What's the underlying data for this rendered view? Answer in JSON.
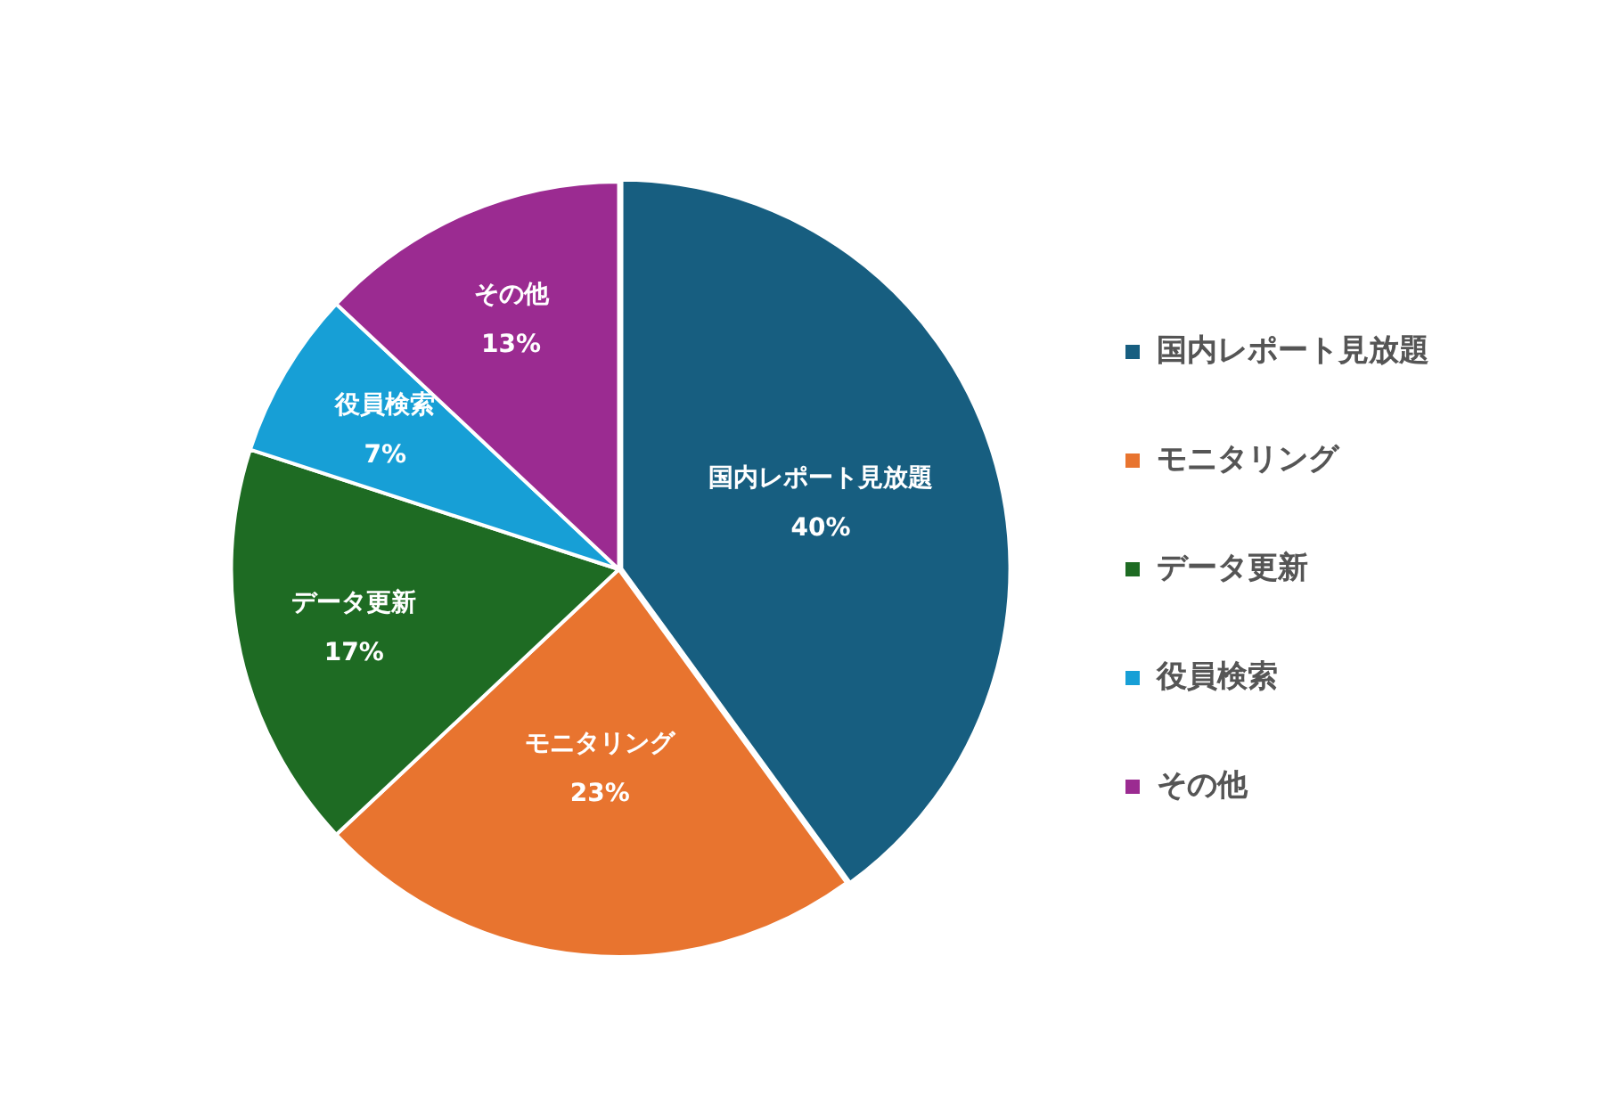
{
  "chart_data": {
    "type": "pie",
    "categories": [
      "国内レポート見放題",
      "モニタリング",
      "データ更新",
      "役員検索",
      "その他"
    ],
    "values": [
      40,
      23,
      17,
      7,
      13
    ],
    "value_labels": [
      "40%",
      "23%",
      "17%",
      "7%",
      "13%"
    ],
    "colors": [
      "#175e80",
      "#e8742f",
      "#1e6b23",
      "#179fd6",
      "#9b2b91"
    ],
    "legend": "right"
  }
}
